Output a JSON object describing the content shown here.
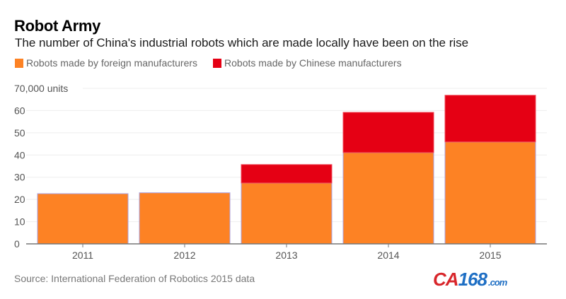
{
  "title": "Robot Army",
  "subtitle": "The number of China's industrial robots which are made locally have been on the rise",
  "source": "Source: International Federation of Robotics 2015 data",
  "watermark": {
    "ca": "CA",
    "num": "168",
    "com": ".com"
  },
  "colors": {
    "foreign": "#fd8224",
    "chinese": "#e50014",
    "grid": "#eeeeee",
    "axis": "#777777"
  },
  "chart_data": {
    "type": "bar",
    "stacked": true,
    "title": "Robot Army",
    "subtitle": "The number of China's industrial robots which are made locally have been on the rise",
    "xlabel": "",
    "ylabel": "units (thousands)",
    "categories": [
      "2011",
      "2012",
      "2013",
      "2014",
      "2015"
    ],
    "series": [
      {
        "name": "Robots made by foreign manufacturers",
        "color": "#fd8224",
        "values": [
          22.6,
          23.0,
          27.4,
          41.1,
          45.9
        ]
      },
      {
        "name": "Robots made by Chinese manufacturers",
        "color": "#e50014",
        "values": [
          0,
          0,
          8.3,
          18.1,
          21.0
        ]
      }
    ],
    "ylim": [
      0,
      70
    ],
    "yticks": [
      0,
      10,
      20,
      30,
      40,
      50,
      60,
      70
    ],
    "ytick_labels": [
      "0",
      "10",
      "20",
      "30",
      "40",
      "50",
      "60",
      "70,000 units"
    ],
    "grid": true,
    "legend_position": "top-left",
    "source": "Source: International Federation of Robotics 2015 data"
  }
}
